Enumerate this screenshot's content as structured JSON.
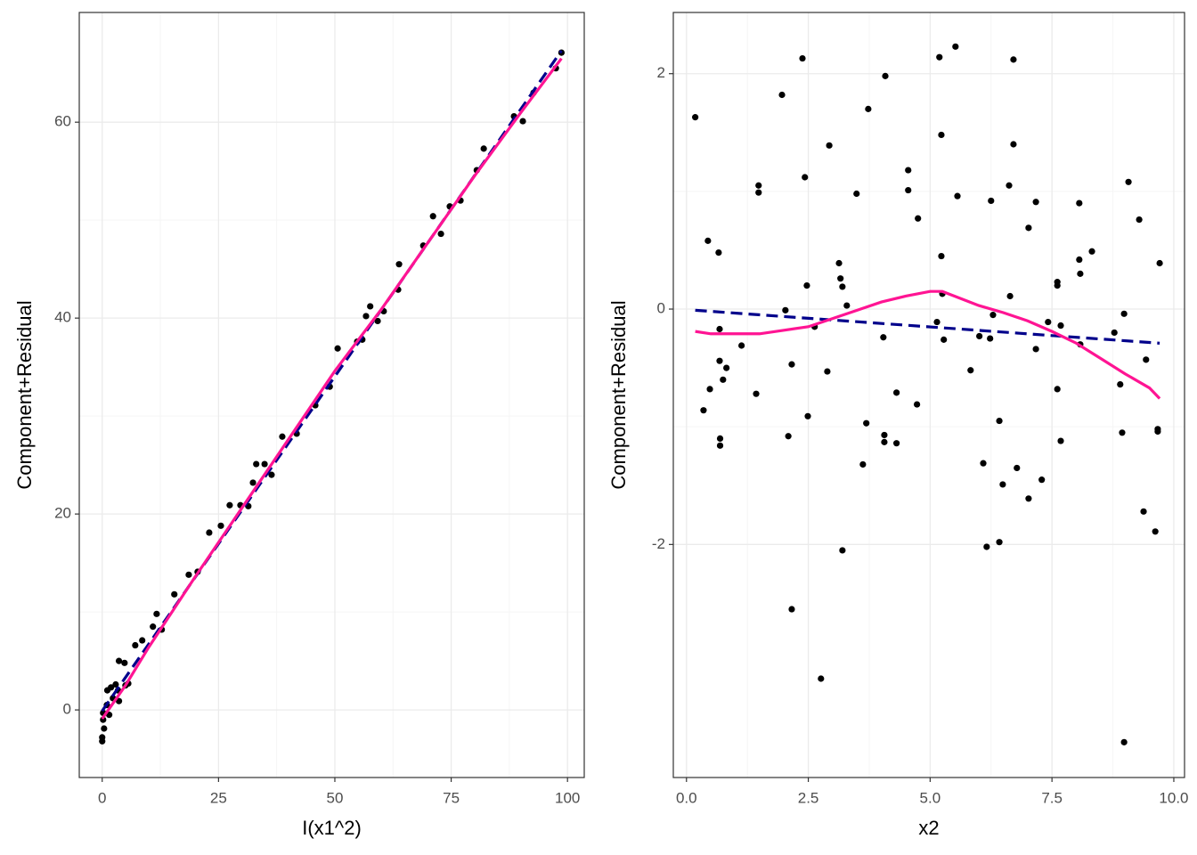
{
  "chart_data": [
    {
      "type": "scatter",
      "xlabel": "I(x1^2)",
      "ylabel": "Component+Residual",
      "xlim": [
        -4.93,
        103.6
      ],
      "ylim": [
        -6.9,
        71.2
      ],
      "xticks": [
        0,
        25,
        50,
        75,
        100
      ],
      "yticks": [
        0,
        20,
        40,
        60
      ],
      "grid": true,
      "series": [
        {
          "type": "scatter",
          "color": "#000000",
          "x": [
            0,
            0,
            0.4,
            0.2,
            0.2,
            1,
            1.1,
            1.9,
            1.5,
            2.3,
            2.9,
            3.4,
            3.6,
            3.6,
            4.8,
            5,
            5.6,
            7.1,
            8.6,
            10.9,
            11.7,
            12.8,
            15.5,
            18.6,
            20.5,
            23,
            25.5,
            27.4,
            29.7,
            31.4,
            32.4,
            33.1,
            34.9,
            36.4,
            38.7,
            41.8,
            45.8,
            48.9,
            50.6,
            54.8,
            55.9,
            56.7,
            57.6,
            59.2,
            60.5,
            63.8,
            63.6,
            69,
            71.1,
            72.8,
            74.7,
            77,
            80.5,
            82,
            88.5,
            90.4,
            92.7,
            97.5,
            98.7
          ],
          "values": [
            -3.2,
            -2.8,
            -1.9,
            -1,
            -0.3,
            0.5,
            2,
            2.3,
            -0.5,
            1.2,
            2.6,
            2,
            0.9,
            5,
            4.8,
            2.5,
            2.7,
            6.6,
            7.1,
            8.5,
            9.8,
            8.2,
            11.8,
            13.8,
            14.1,
            18.1,
            18.8,
            20.9,
            20.9,
            20.8,
            23.2,
            25.1,
            25.1,
            24,
            27.9,
            28.2,
            31.1,
            33,
            36.9,
            37.6,
            37.8,
            40.2,
            41.2,
            39.7,
            40.7,
            45.5,
            42.9,
            47.4,
            50.4,
            48.6,
            51.4,
            52,
            55.1,
            57.3,
            60.6,
            60.1,
            63,
            65.5,
            67.1
          ]
        },
        {
          "type": "line",
          "color": "#00008b",
          "dashed": true,
          "x": [
            0,
            98.7
          ],
          "values": [
            -0.1,
            67.3
          ]
        },
        {
          "type": "line",
          "color": "#ff1493",
          "dashed": false,
          "x": [
            0,
            5,
            10,
            20,
            30,
            40,
            50,
            60,
            70,
            80,
            90,
            98.7
          ],
          "values": [
            -0.9,
            2.5,
            6.4,
            13.6,
            20.6,
            27.6,
            34.6,
            40.9,
            47.7,
            54.5,
            61,
            66.5
          ]
        }
      ]
    },
    {
      "type": "scatter",
      "xlabel": "x2",
      "ylabel": "Component+Residual",
      "xlim": [
        -0.27,
        10.22
      ],
      "ylim": [
        -3.98,
        2.52
      ],
      "xticks": [
        {
          "value": 0,
          "label": "0.0"
        },
        2.5,
        {
          "value": 5,
          "label": "5.0"
        },
        7.5,
        {
          "value": 10,
          "label": "10.0"
        }
      ],
      "yticks": [
        -2,
        0,
        2
      ],
      "grid": true,
      "series": [
        {
          "type": "scatter",
          "color": "#000000",
          "x": [
            0.18,
            0.35,
            0.44,
            0.48,
            0.66,
            0.68,
            0.68,
            0.69,
            0.69,
            0.75,
            0.82,
            1.13,
            1.43,
            1.48,
            1.48,
            1.96,
            2.03,
            2.09,
            2.16,
            2.16,
            2.38,
            2.43,
            2.47,
            2.49,
            2.63,
            2.76,
            2.89,
            2.93,
            3.13,
            3.16,
            3.2,
            3.2,
            3.29,
            3.49,
            3.62,
            3.69,
            3.73,
            4.04,
            4.06,
            4.06,
            4.08,
            4.31,
            4.31,
            4.55,
            4.55,
            4.73,
            4.75,
            5.14,
            5.19,
            5.23,
            5.23,
            5.25,
            5.28,
            5.52,
            5.56,
            5.83,
            6.01,
            6.09,
            6.16,
            6.23,
            6.25,
            6.29,
            6.42,
            6.42,
            6.49,
            6.62,
            6.64,
            6.71,
            6.71,
            6.78,
            7.02,
            7.02,
            7.17,
            7.17,
            7.29,
            7.42,
            7.61,
            7.61,
            7.61,
            7.68,
            7.68,
            8.06,
            8.06,
            8.08,
            8.08,
            8.32,
            8.78,
            8.9,
            8.94,
            8.98,
            8.98,
            9.07,
            9.29,
            9.38,
            9.43,
            9.62,
            9.67,
            9.67,
            9.71
          ],
          "values": [
            1.63,
            -0.86,
            0.58,
            -0.68,
            0.48,
            -0.17,
            -0.44,
            -1.1,
            -1.16,
            -0.6,
            -0.5,
            -0.31,
            -0.72,
            1.05,
            0.99,
            1.82,
            -0.01,
            -1.08,
            -0.47,
            -2.55,
            2.13,
            1.12,
            0.2,
            -0.91,
            -0.15,
            -3.14,
            -0.53,
            1.39,
            0.39,
            0.26,
            0.19,
            -2.05,
            0.03,
            0.98,
            -1.32,
            -0.97,
            1.7,
            -0.24,
            -1.07,
            -1.13,
            1.98,
            -0.71,
            -1.14,
            1.18,
            1.01,
            -0.81,
            0.77,
            -0.11,
            2.14,
            1.48,
            0.45,
            0.13,
            -0.26,
            2.23,
            0.96,
            -0.52,
            -0.23,
            -1.31,
            -2.02,
            -0.25,
            0.92,
            -0.05,
            -0.95,
            -1.98,
            -1.49,
            1.05,
            0.11,
            2.12,
            1.4,
            -1.35,
            0.69,
            -1.61,
            -0.34,
            0.91,
            -1.45,
            -0.11,
            0.23,
            0.2,
            -0.68,
            -0.14,
            -1.12,
            0.9,
            0.42,
            0.3,
            -0.3,
            0.49,
            -0.2,
            -0.64,
            -1.05,
            -0.04,
            -3.68,
            1.08,
            0.76,
            -1.72,
            -0.43,
            -1.89,
            -1.02,
            -1.04,
            0.39
          ]
        },
        {
          "type": "line",
          "color": "#00008b",
          "dashed": true,
          "x": [
            0.18,
            9.71
          ],
          "values": [
            -0.01,
            -0.29
          ]
        },
        {
          "type": "line",
          "color": "#ff1493",
          "dashed": false,
          "x": [
            0.18,
            0.5,
            1,
            1.5,
            2,
            2.5,
            3,
            3.5,
            4,
            4.5,
            5,
            5.25,
            5.5,
            6,
            6.5,
            7,
            7.5,
            8,
            8.5,
            9,
            9.5,
            9.71
          ],
          "values": [
            -0.19,
            -0.21,
            -0.21,
            -0.21,
            -0.18,
            -0.15,
            -0.08,
            -0.01,
            0.06,
            0.11,
            0.15,
            0.15,
            0.11,
            0.03,
            -0.03,
            -0.1,
            -0.19,
            -0.29,
            -0.42,
            -0.55,
            -0.67,
            -0.76
          ]
        }
      ]
    }
  ]
}
